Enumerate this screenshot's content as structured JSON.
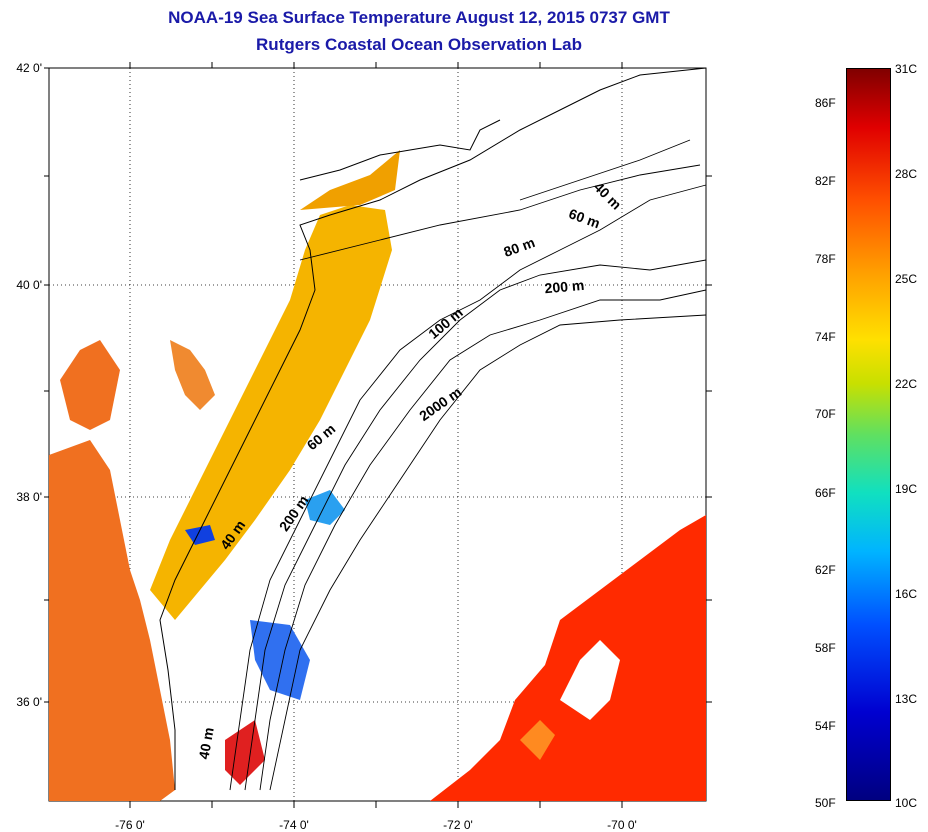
{
  "header": {
    "title": "NOAA-19 Sea Surface Temperature August 12, 2015 0737 GMT",
    "subtitle": "Rutgers Coastal Ocean Observation Lab"
  },
  "axes": {
    "lat_labels": [
      "42 0'",
      "40 0'",
      "38 0'",
      "36 0'"
    ],
    "lon_labels": [
      "-76 0'",
      "-74 0'",
      "-72 0'",
      "-70 0'"
    ],
    "lat_range": [
      35,
      42
    ],
    "lon_range": [
      -77,
      -69
    ]
  },
  "contours": [
    {
      "label": "40 m"
    },
    {
      "label": "60 m"
    },
    {
      "label": "80 m"
    },
    {
      "label": "200 m"
    },
    {
      "label": "100 m"
    },
    {
      "label": "2000 m"
    },
    {
      "label": "60 m"
    },
    {
      "label": "200 m"
    },
    {
      "label": "40 m"
    },
    {
      "label": "40 m"
    }
  ],
  "colorbar": {
    "fahrenheit": [
      "86F",
      "82F",
      "78F",
      "74F",
      "70F",
      "66F",
      "62F",
      "58F",
      "54F",
      "50F"
    ],
    "celsius": [
      "31C",
      "28C",
      "25C",
      "22C",
      "19C",
      "16C",
      "13C",
      "10C"
    ],
    "range_c": [
      10,
      31
    ]
  },
  "colors": {
    "title": "#1a1aa8",
    "land": "#ffffff",
    "warm_sst": "#ff2a00",
    "shelf_sst": "#f5b400",
    "bay_sst": "#f07020",
    "cold_patch": "#1040e0"
  }
}
